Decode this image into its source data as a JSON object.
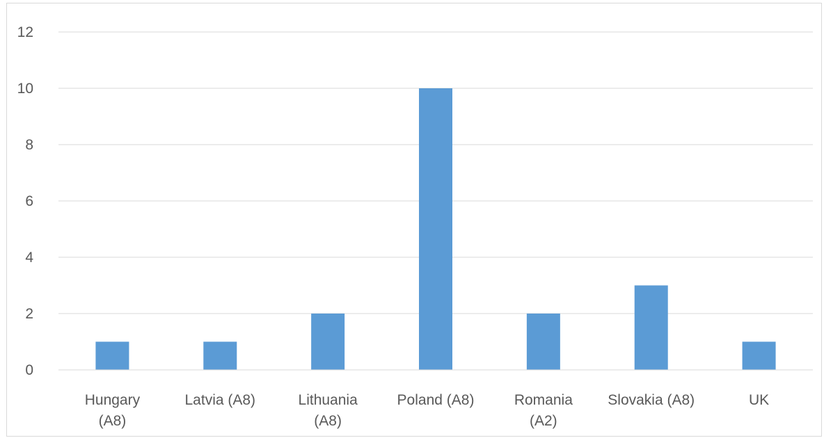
{
  "chart_data": {
    "type": "bar",
    "categories": [
      [
        "Hungary",
        "(A8)"
      ],
      [
        "Latvia (A8)"
      ],
      [
        "Lithuania",
        "(A8)"
      ],
      [
        "Poland (A8)"
      ],
      [
        "Romania",
        "(A2)"
      ],
      [
        "Slovakia (A8)"
      ],
      [
        "UK"
      ]
    ],
    "values": [
      1,
      1,
      2,
      10,
      2,
      3,
      1
    ],
    "ylim": [
      0,
      12
    ],
    "yticks": [
      0,
      2,
      4,
      6,
      8,
      10,
      12
    ],
    "grid": true,
    "legend": "none",
    "bar_color": "#5b9bd5",
    "title": "",
    "xlabel": "",
    "ylabel": ""
  }
}
